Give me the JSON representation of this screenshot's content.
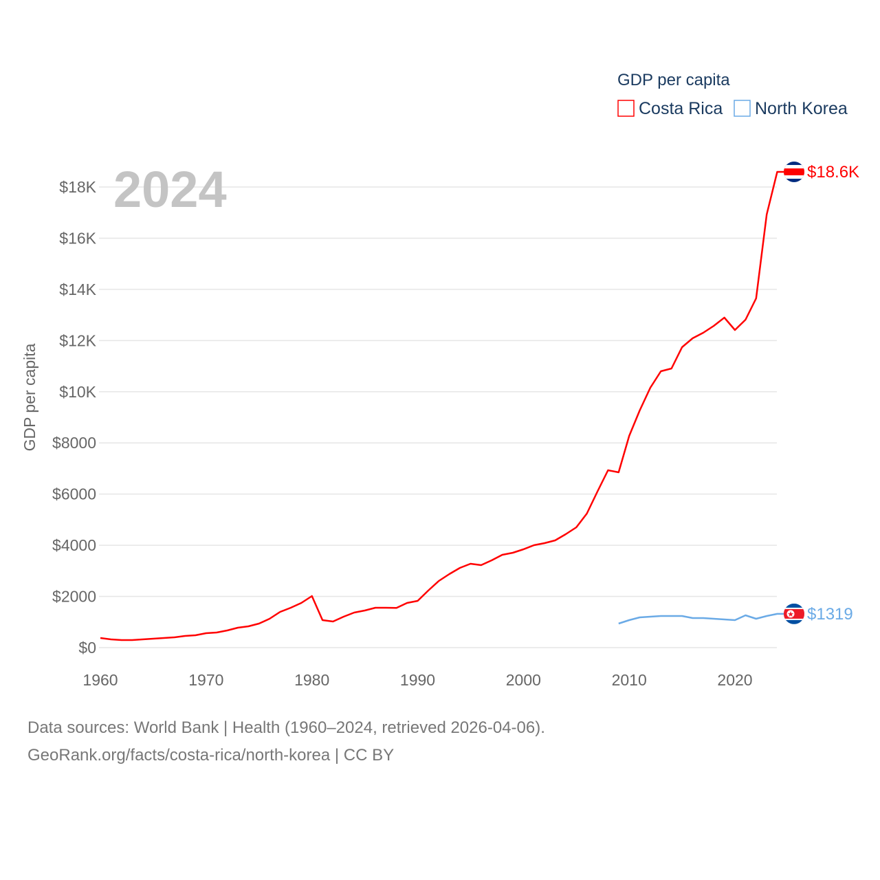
{
  "chart_data": {
    "type": "line",
    "title": "GDP per capita",
    "current_year_label": "2024",
    "ylabel": "GDP per capita",
    "xlabel": "",
    "xlim": [
      1960,
      2024
    ],
    "ylim": [
      0,
      18000
    ],
    "grid": true,
    "legend_placement": "top-right",
    "x_ticks": [
      1960,
      1970,
      1980,
      1990,
      2000,
      2010,
      2020
    ],
    "x_tick_labels": [
      "1960",
      "1970",
      "1980",
      "1990",
      "2000",
      "2010",
      "2020"
    ],
    "y_ticks": [
      0,
      2000,
      4000,
      6000,
      8000,
      10000,
      12000,
      14000,
      16000,
      18000
    ],
    "y_tick_labels": [
      "$0",
      "$2000",
      "$4000",
      "$6000",
      "$8000",
      "$10K",
      "$12K",
      "$14K",
      "$16K",
      "$18K"
    ],
    "series": [
      {
        "name": "Costa Rica",
        "color": "#ff0000",
        "end_label": "$18.6K",
        "start_year": 1960,
        "values": [
          376,
          322,
          296,
          296,
          322,
          350,
          376,
          403,
          457,
          484,
          564,
          591,
          672,
          779,
          833,
          940,
          1128,
          1397,
          1558,
          1746,
          2015,
          1075,
          1021,
          1209,
          1370,
          1451,
          1558,
          1558,
          1550,
          1746,
          1827,
          2230,
          2606,
          2875,
          3117,
          3278,
          3224,
          3412,
          3627,
          3708,
          3842,
          4003,
          4084,
          4191,
          4433,
          4702,
          5239,
          6099,
          6932,
          6851,
          8275,
          9269,
          10156,
          10801,
          10908,
          11741,
          12090,
          12305,
          12574,
          12896,
          12413,
          12816,
          13649,
          16926,
          18592
        ]
      },
      {
        "name": "North Korea",
        "color": "#6aaae6",
        "end_label": "$1319",
        "start_year": 2009,
        "values": [
          940,
          1075,
          1182,
          1209,
          1236,
          1236,
          1236,
          1155,
          1155,
          1128,
          1101,
          1075,
          1263,
          1128,
          1236,
          1319
        ]
      }
    ]
  },
  "footer": {
    "line1": "Data sources: World Bank | Health (1960–2024, retrieved 2026-04-06).",
    "line2": "GeoRank.org/facts/costa-rica/north-korea | CC BY"
  }
}
